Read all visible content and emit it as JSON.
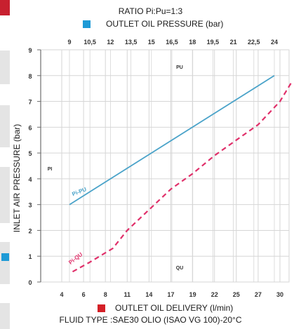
{
  "header": {
    "ratio": "RATIO Pi:Pu=1:3",
    "top_axis_title": "OUTLET OIL PRESSURE (bar)"
  },
  "footer": {
    "bottom_axis_title": "OUTLET OIL DELIVERY (l/min)",
    "fluid_type": "FLUID TYPE :SAE30 OLIO (ISAO VG 100)-20°C"
  },
  "left_axis_title": "INLET AIR PRESSURE (bar)",
  "colors": {
    "pressure": "#4aa3c9",
    "delivery": "#e0306a",
    "pressure_marker": "#1e9ad6",
    "delivery_marker": "#d42027",
    "grid": "#d6d6d6",
    "axis": "#6e6e6e"
  },
  "chart_data": {
    "type": "line",
    "grid": true,
    "y_axis": {
      "label": "INLET AIR PRESSURE (bar)",
      "range": [
        0,
        9
      ],
      "ticks": [
        "0",
        "1",
        "2",
        "3",
        "4",
        "5",
        "6",
        "7",
        "8",
        "9"
      ]
    },
    "x_bottom": {
      "label": "OUTLET OIL DELIVERY (l/min)",
      "range": [
        0,
        32
      ],
      "ticks": [
        "4",
        "6",
        "8",
        "11",
        "14",
        "17",
        "19",
        "22",
        "25",
        "27",
        "30"
      ]
    },
    "x_top": {
      "label": "OUTLET OIL PRESSURE (bar)",
      "range": [
        0,
        27
      ],
      "ticks": [
        "9",
        "10,5",
        "12",
        "13,5",
        "15",
        "16,5",
        "18",
        "19,5",
        "21",
        "22,5",
        "24"
      ]
    },
    "inner_labels": {
      "pu": "PU",
      "qu": "QU",
      "pi": "PI"
    },
    "series": [
      {
        "name": "Pi-PU",
        "axis": "top",
        "style": "solid",
        "points": [
          [
            9,
            3.0
          ],
          [
            24,
            8.0
          ]
        ]
      },
      {
        "name": "Pi-QU",
        "axis": "bottom",
        "style": "dashed",
        "points": [
          [
            5,
            0.4
          ],
          [
            6.5,
            0.75
          ],
          [
            9,
            1.3
          ],
          [
            11,
            2.0
          ],
          [
            14,
            2.8
          ],
          [
            17,
            3.6
          ],
          [
            19,
            4.2
          ],
          [
            22,
            4.9
          ],
          [
            25,
            5.5
          ],
          [
            27,
            6.1
          ],
          [
            30,
            7.0
          ],
          [
            31.5,
            7.7
          ]
        ]
      }
    ]
  }
}
